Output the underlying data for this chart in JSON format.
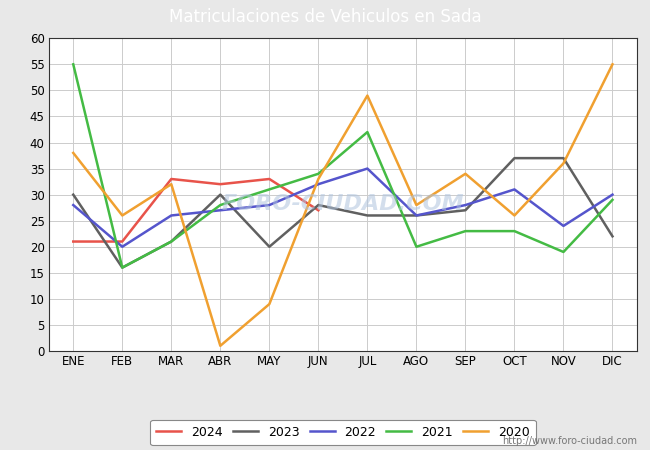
{
  "title": "Matriculaciones de Vehiculos en Sada",
  "title_color": "#ffffff",
  "title_bg_color": "#5b9bd5",
  "months": [
    "ENE",
    "FEB",
    "MAR",
    "ABR",
    "MAY",
    "JUN",
    "JUL",
    "AGO",
    "SEP",
    "OCT",
    "NOV",
    "DIC"
  ],
  "series": {
    "2024": {
      "color": "#e8534a",
      "data": [
        21,
        21,
        33,
        32,
        33,
        27,
        null,
        null,
        null,
        null,
        null,
        null
      ]
    },
    "2023": {
      "color": "#606060",
      "data": [
        30,
        16,
        21,
        30,
        20,
        28,
        26,
        26,
        27,
        37,
        37,
        22
      ]
    },
    "2022": {
      "color": "#5555cc",
      "data": [
        28,
        20,
        26,
        27,
        28,
        32,
        35,
        26,
        28,
        31,
        24,
        30
      ]
    },
    "2021": {
      "color": "#44bb44",
      "data": [
        55,
        16,
        21,
        28,
        31,
        34,
        42,
        20,
        23,
        23,
        19,
        29
      ]
    },
    "2020": {
      "color": "#f0a030",
      "data": [
        38,
        26,
        32,
        1,
        9,
        33,
        49,
        28,
        34,
        26,
        36,
        55
      ]
    }
  },
  "ylim": [
    0,
    60
  ],
  "yticks": [
    0,
    5,
    10,
    15,
    20,
    25,
    30,
    35,
    40,
    45,
    50,
    55,
    60
  ],
  "watermark_plot": "FORO-CIUDAD.COM",
  "watermark_url": "http://www.foro-ciudad.com",
  "outer_bg_color": "#e8e8e8",
  "plot_bg_color": "#ffffff",
  "grid_color": "#cccccc",
  "years_order": [
    "2024",
    "2023",
    "2022",
    "2021",
    "2020"
  ],
  "linewidth": 1.8,
  "title_fontsize": 12,
  "tick_fontsize": 8.5,
  "legend_fontsize": 9
}
